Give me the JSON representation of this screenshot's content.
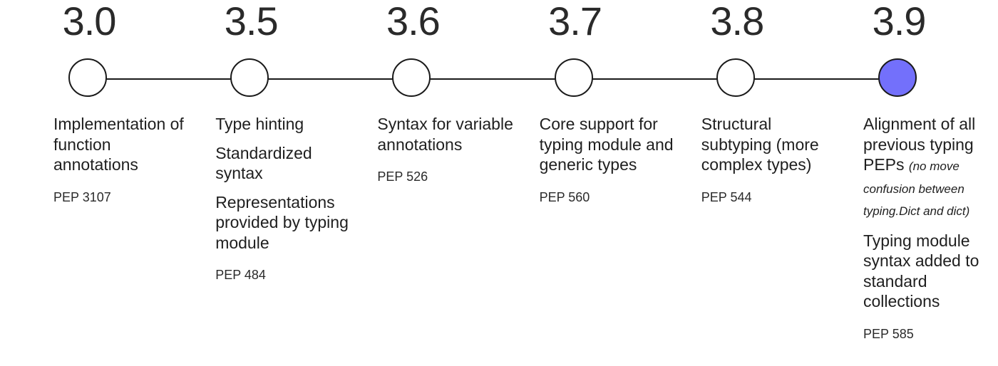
{
  "versions": [
    {
      "label": "3.0",
      "current": false,
      "features": [
        {
          "text": "Implementation of function annotations",
          "note": ""
        }
      ],
      "pep": "PEP 3107"
    },
    {
      "label": "3.5",
      "current": false,
      "features": [
        {
          "text": "Type hinting",
          "note": ""
        },
        {
          "text": "Standardized syntax",
          "note": ""
        },
        {
          "text": "Representations provided by typing module",
          "note": ""
        }
      ],
      "pep": "PEP 484"
    },
    {
      "label": "3.6",
      "current": false,
      "features": [
        {
          "text": "Syntax for variable annotations",
          "note": ""
        }
      ],
      "pep": "PEP 526"
    },
    {
      "label": "3.7",
      "current": false,
      "features": [
        {
          "text": "Core support for typing module and generic types",
          "note": ""
        }
      ],
      "pep": "PEP 560"
    },
    {
      "label": "3.8",
      "current": false,
      "features": [
        {
          "text": "Structural subtyping (more complex types)",
          "note": ""
        }
      ],
      "pep": "PEP 544"
    },
    {
      "label": "3.9",
      "current": true,
      "features": [
        {
          "text": "Alignment of all previous typing PEPs",
          "note": "(no move confusion between typing.Dict and dict)"
        },
        {
          "text": "Typing module syntax added to standard collections",
          "note": ""
        }
      ],
      "pep": "PEP 585"
    }
  ],
  "colors": {
    "current_node": "#7370fb",
    "node_fill": "#ffffff",
    "line": "#1a1a1a"
  }
}
